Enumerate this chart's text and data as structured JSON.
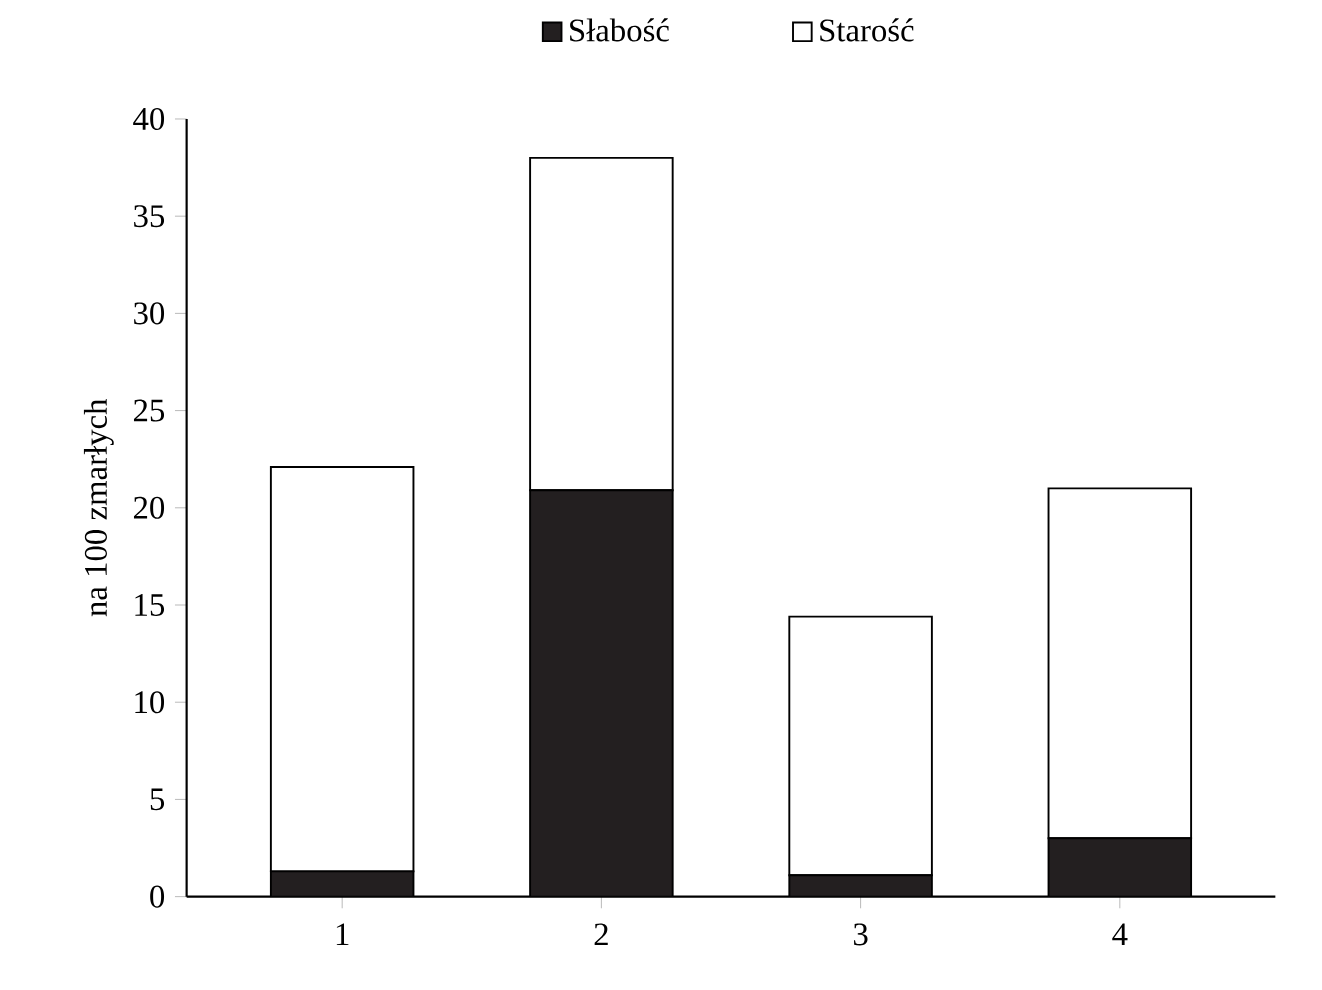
{
  "chart_data": {
    "type": "bar",
    "stacked": true,
    "ylabel": "na 100 zmarłych",
    "categories": [
      "1",
      "2",
      "3",
      "4"
    ],
    "series": [
      {
        "name": "Słabość",
        "color": "#231f20",
        "values": [
          1.3,
          20.9,
          1.1,
          3.0
        ]
      },
      {
        "name": "Starość",
        "color": "#ffffff",
        "values": [
          20.8,
          17.1,
          13.3,
          18.0
        ]
      }
    ],
    "ylim": [
      0,
      40
    ],
    "yticks": [
      0,
      5,
      10,
      15,
      20,
      25,
      30,
      35,
      40
    ],
    "legend": "top",
    "grid": false
  }
}
